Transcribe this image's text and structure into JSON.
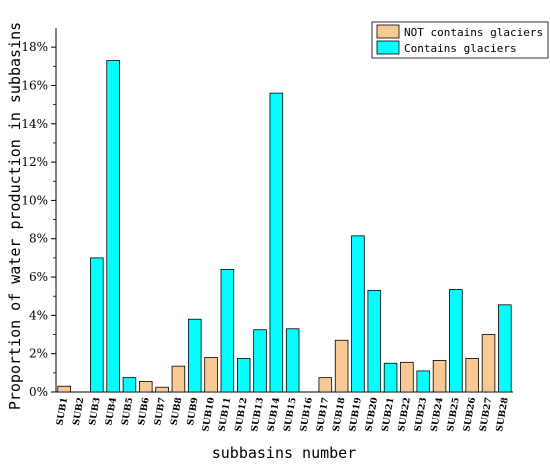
{
  "chart_data": {
    "type": "bar",
    "xlabel": "subbasins number",
    "ylabel": "Proportion of water production in subbasins",
    "ylim": [
      0,
      19
    ],
    "yticks": [
      0,
      2,
      4,
      6,
      8,
      10,
      12,
      14,
      16,
      18
    ],
    "ytick_labels": [
      "0%",
      "2%",
      "4%",
      "6%",
      "8%",
      "10%",
      "12%",
      "14%",
      "16%",
      "18%"
    ],
    "legend_position": "top-right",
    "categories": [
      "SUB1",
      "SUB2",
      "SUB3",
      "SUB4",
      "SUB5",
      "SUB6",
      "SUB7",
      "SUB8",
      "SUB9",
      "SUB10",
      "SUB11",
      "SUB12",
      "SUB13",
      "SUB14",
      "SUB15",
      "SUB16",
      "SUB17",
      "SUB18",
      "SUB19",
      "SUB20",
      "SUB21",
      "SUB22",
      "SUB23",
      "SUB24",
      "SUB25",
      "SUB26",
      "SUB27",
      "SUB28"
    ],
    "series": [
      {
        "name": "NOT contains glaciers",
        "color": "#F8C994",
        "values": [
          0.3,
          0,
          0,
          0,
          0,
          0.55,
          0.25,
          1.35,
          0,
          1.8,
          0,
          0,
          0,
          0,
          0,
          0,
          0.75,
          2.7,
          0,
          0,
          0,
          1.55,
          0,
          1.65,
          0,
          1.75,
          3.0,
          0
        ]
      },
      {
        "name": "Contains glaciers",
        "color": "#00FFFF",
        "values": [
          0,
          0,
          7.0,
          17.3,
          0.75,
          0,
          0,
          0,
          3.8,
          0,
          6.4,
          1.75,
          3.25,
          15.6,
          3.3,
          0,
          0,
          0,
          8.15,
          5.3,
          1.5,
          0,
          1.1,
          0,
          5.35,
          0,
          0,
          4.55
        ]
      }
    ]
  }
}
